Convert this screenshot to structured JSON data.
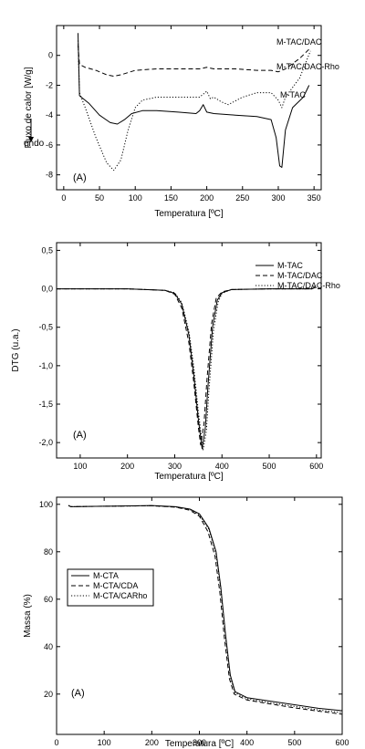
{
  "figure": {
    "title": ""
  },
  "chart_data": [
    {
      "type": "line",
      "panel_label": "(A)",
      "xlabel": "Temperatura [ºC]",
      "ylabel": "Fluxo de calor [W/g]",
      "ylabel_annotation": "endo",
      "xlim": [
        -10,
        360
      ],
      "ylim": [
        -9,
        2
      ],
      "xticks": [
        "0",
        "50",
        "100",
        "150",
        "200",
        "250",
        "300",
        "350"
      ],
      "yticks": [
        "-8",
        "-6",
        "-4",
        "-2",
        "0"
      ],
      "grid": false,
      "legend_position": "curve-labels",
      "series": [
        {
          "name": "M-TAC/DAC",
          "style": "dashed",
          "x": [
            20,
            22,
            30,
            45,
            60,
            70,
            80,
            100,
            130,
            160,
            190,
            200,
            210,
            240,
            270,
            290,
            300,
            310,
            330,
            345
          ],
          "y": [
            0.7,
            -0.6,
            -0.8,
            -1.0,
            -1.3,
            -1.4,
            -1.3,
            -1.0,
            -0.9,
            -0.9,
            -0.9,
            -0.8,
            -0.9,
            -0.9,
            -1.0,
            -1.0,
            -1.1,
            -0.9,
            -0.2,
            0.5
          ]
        },
        {
          "name": "M-TAC/DAC-Rho",
          "style": "dotted",
          "x": [
            20,
            22,
            30,
            45,
            60,
            70,
            80,
            90,
            100,
            110,
            130,
            160,
            190,
            200,
            205,
            210,
            220,
            230,
            250,
            270,
            290,
            300,
            305,
            310,
            330,
            345
          ],
          "y": [
            1.0,
            -2.5,
            -3.5,
            -5.5,
            -7.2,
            -7.7,
            -7.0,
            -5.0,
            -3.5,
            -3.0,
            -2.8,
            -2.8,
            -2.8,
            -2.4,
            -2.9,
            -2.8,
            -3.1,
            -3.3,
            -2.8,
            -2.5,
            -2.5,
            -3.0,
            -3.5,
            -2.8,
            -1.5,
            0.3
          ]
        },
        {
          "name": "M-TAC",
          "style": "solid",
          "x": [
            20,
            22,
            35,
            50,
            65,
            75,
            85,
            95,
            110,
            130,
            160,
            185,
            190,
            195,
            200,
            210,
            240,
            270,
            290,
            297,
            302,
            305,
            310,
            320,
            335,
            343
          ],
          "y": [
            1.5,
            -2.7,
            -3.2,
            -4.0,
            -4.5,
            -4.6,
            -4.3,
            -3.9,
            -3.7,
            -3.7,
            -3.8,
            -3.9,
            -3.7,
            -3.3,
            -3.8,
            -3.9,
            -4.0,
            -4.1,
            -4.3,
            -5.5,
            -7.4,
            -7.5,
            -5.0,
            -3.5,
            -2.8,
            -2.0
          ]
        }
      ]
    },
    {
      "type": "line",
      "panel_label": "(A)",
      "xlabel": "Temperatura [ºC]",
      "ylabel": "DTG (u.a.)",
      "xlim": [
        50,
        610
      ],
      "ylim": [
        -2.2,
        0.6
      ],
      "xticks": [
        "100",
        "200",
        "300",
        "400",
        "500",
        "600"
      ],
      "yticks": [
        "0,5",
        "0,0",
        "-0,5",
        "-1,0",
        "-1,5",
        "-2,0"
      ],
      "grid": false,
      "legend_position": "top-right",
      "series": [
        {
          "name": "M-TAC",
          "style": "solid",
          "x": [
            50,
            100,
            200,
            280,
            300,
            315,
            330,
            340,
            350,
            358,
            365,
            370,
            380,
            390,
            400,
            420,
            500,
            590,
            598
          ],
          "y": [
            0.0,
            0.0,
            0.0,
            -0.02,
            -0.06,
            -0.2,
            -0.6,
            -1.1,
            -1.7,
            -2.08,
            -1.8,
            -1.3,
            -0.5,
            -0.15,
            -0.05,
            -0.01,
            0.0,
            0.0,
            0.02
          ]
        },
        {
          "name": "M-TAC/DAC",
          "style": "dashed",
          "x": [
            50,
            100,
            200,
            280,
            300,
            315,
            330,
            340,
            350,
            355,
            362,
            368,
            378,
            388,
            400,
            420,
            500,
            590,
            598
          ],
          "y": [
            0.0,
            0.0,
            0.0,
            -0.02,
            -0.07,
            -0.25,
            -0.7,
            -1.2,
            -1.8,
            -2.03,
            -1.75,
            -1.2,
            -0.45,
            -0.12,
            -0.04,
            -0.01,
            0.0,
            0.0,
            0.02
          ]
        },
        {
          "name": "M-TAC/DAC-Rho",
          "style": "dotted",
          "x": [
            50,
            100,
            200,
            280,
            300,
            315,
            330,
            340,
            350,
            360,
            367,
            372,
            382,
            392,
            400,
            420,
            500,
            590,
            598
          ],
          "y": [
            0.0,
            0.0,
            0.0,
            -0.02,
            -0.05,
            -0.18,
            -0.55,
            -1.0,
            -1.6,
            -2.1,
            -1.85,
            -1.35,
            -0.55,
            -0.17,
            -0.06,
            -0.01,
            0.0,
            0.0,
            0.04
          ]
        }
      ]
    },
    {
      "type": "line",
      "panel_label": "(A)",
      "xlabel": "Temperatura [ºC]",
      "ylabel": "Massa (%)",
      "xlim": [
        0,
        600
      ],
      "ylim": [
        3,
        103
      ],
      "xticks": [
        "0",
        "100",
        "200",
        "300",
        "400",
        "500",
        "600"
      ],
      "yticks": [
        "20",
        "40",
        "60",
        "80",
        "100"
      ],
      "grid": false,
      "legend_position": "middle-left",
      "series": [
        {
          "name": "M-CTA",
          "style": "solid",
          "x": [
            25,
            30,
            100,
            200,
            250,
            280,
            300,
            320,
            335,
            345,
            355,
            365,
            375,
            400,
            450,
            500,
            550,
            600
          ],
          "y": [
            99.5,
            99.0,
            99.2,
            99.5,
            99.0,
            98.0,
            96.0,
            90.0,
            80.0,
            65.0,
            45.0,
            28.0,
            21.0,
            18.5,
            17.0,
            15.5,
            14.0,
            13.0
          ]
        },
        {
          "name": "M-CTA/CDA",
          "style": "dashed",
          "x": [
            25,
            30,
            100,
            200,
            250,
            280,
            300,
            318,
            333,
            343,
            353,
            363,
            373,
            400,
            450,
            500,
            550,
            600
          ],
          "y": [
            99.5,
            99.0,
            99.2,
            99.4,
            98.8,
            97.5,
            95.0,
            88.5,
            78.0,
            63.0,
            43.0,
            26.5,
            20.0,
            17.5,
            15.8,
            14.2,
            12.8,
            11.5
          ]
        },
        {
          "name": "M-CTA/CARho",
          "style": "dotted",
          "x": [
            25,
            30,
            100,
            200,
            250,
            280,
            300,
            320,
            335,
            345,
            355,
            365,
            375,
            400,
            450,
            500,
            550,
            600
          ],
          "y": [
            99.5,
            99.0,
            99.2,
            99.4,
            98.9,
            97.8,
            95.5,
            89.5,
            79.0,
            64.0,
            44.0,
            27.0,
            20.5,
            18.0,
            16.3,
            14.8,
            13.3,
            12.2
          ]
        }
      ]
    }
  ]
}
